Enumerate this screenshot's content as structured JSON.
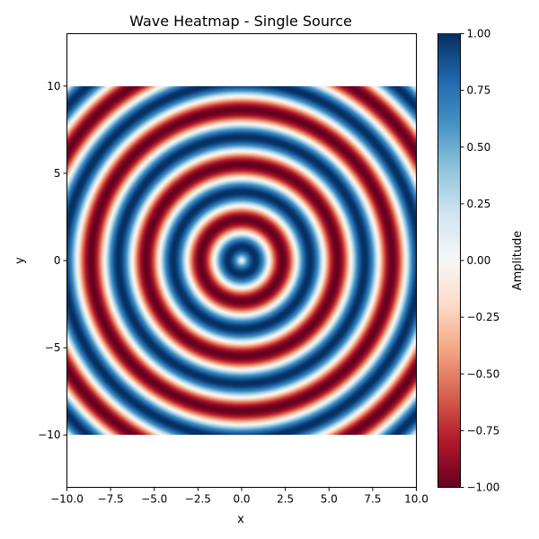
{
  "chart_data": {
    "type": "heatmap",
    "title": "Wave Heatmap - Single Source",
    "xlabel": "x",
    "ylabel": "y",
    "xlim": [
      -10,
      10
    ],
    "ylim": [
      -13,
      13
    ],
    "data_extent": {
      "x": [
        -10,
        10
      ],
      "y": [
        -10,
        10
      ]
    },
    "source": {
      "x": 0,
      "y": 0
    },
    "function": "sin(2*r)",
    "colormap": "RdBu",
    "x_ticks": [
      -10.0,
      -7.5,
      -5.0,
      -2.5,
      0.0,
      2.5,
      5.0,
      7.5,
      10.0
    ],
    "x_tick_labels": [
      "−10.0",
      "−7.5",
      "−5.0",
      "−2.5",
      "0.0",
      "2.5",
      "5.0",
      "7.5",
      "10.0"
    ],
    "y_ticks": [
      -10,
      -5,
      0,
      5,
      10
    ],
    "y_tick_labels": [
      "−10",
      "−5",
      "0",
      "5",
      "10"
    ],
    "colorbar": {
      "label": "Amplitude",
      "range": [
        -1,
        1
      ],
      "ticks": [
        1.0,
        0.75,
        0.5,
        0.25,
        0.0,
        -0.25,
        -0.5,
        -0.75,
        -1.0
      ],
      "tick_labels": [
        "1.00",
        "0.75",
        "0.50",
        "0.25",
        "0.00",
        "−0.25",
        "−0.50",
        "−0.75",
        "−1.00"
      ]
    },
    "grid": false
  }
}
